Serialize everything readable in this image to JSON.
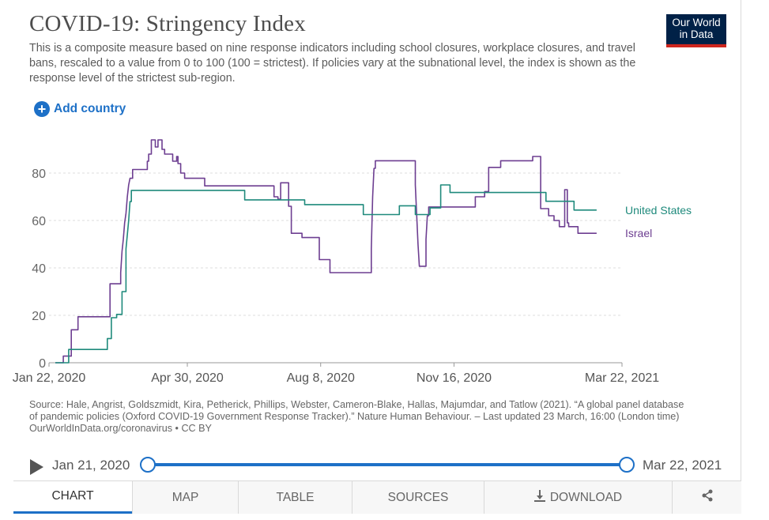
{
  "header": {
    "title": "COVID-19: Stringency Index",
    "subtitle": "This is a composite measure based on nine response indicators including school closures, workplace closures, and travel bans, rescaled to a value from 0 to 100 (100 = strictest). If policies vary at the subnational level, the index is shown as the response level of the strictest sub-region.",
    "logo_line1": "Our World",
    "logo_line2": "in Data",
    "logo_bg": "#002147",
    "logo_accent": "#ce261e"
  },
  "controls": {
    "add_country_label": "Add country",
    "add_icon": "plus-circle-icon",
    "accent": "#1d70c7"
  },
  "chart_data": {
    "type": "line",
    "x_tick_labels": [
      "Jan 22, 2020",
      "Apr 30, 2020",
      "Aug 8, 2020",
      "Nov 16, 2020",
      "Mar 22, 2021"
    ],
    "x_tick_days": [
      0,
      99,
      199,
      299,
      425
    ],
    "y_ticks": [
      0,
      20,
      40,
      60,
      80
    ],
    "ylim": [
      0,
      95
    ],
    "xlim_days": [
      0,
      425
    ],
    "grid": "horizontal dashed",
    "series": [
      {
        "name": "Israel",
        "color": "#6d3e91",
        "points": [
          [
            0,
            0
          ],
          [
            6,
            0
          ],
          [
            6,
            2.8
          ],
          [
            12,
            2.8
          ],
          [
            12,
            13.9
          ],
          [
            17,
            13.9
          ],
          [
            17,
            19.4
          ],
          [
            41,
            19.4
          ],
          [
            41,
            33.3
          ],
          [
            49,
            33.3
          ],
          [
            49,
            38
          ],
          [
            50,
            47
          ],
          [
            51,
            52
          ],
          [
            52,
            59
          ],
          [
            53,
            63
          ],
          [
            54,
            70
          ],
          [
            55,
            75
          ],
          [
            56,
            77.8
          ],
          [
            58,
            77.8
          ],
          [
            58,
            81.5
          ],
          [
            69,
            81.5
          ],
          [
            69,
            85
          ],
          [
            70,
            85
          ],
          [
            70,
            88
          ],
          [
            72,
            88
          ],
          [
            72,
            94
          ],
          [
            75,
            94
          ],
          [
            75,
            91
          ],
          [
            77,
            91
          ],
          [
            77,
            94
          ],
          [
            80,
            94
          ],
          [
            80,
            90
          ],
          [
            82,
            90
          ],
          [
            82,
            88
          ],
          [
            88,
            88
          ],
          [
            88,
            85
          ],
          [
            91,
            85
          ],
          [
            91,
            87
          ],
          [
            92,
            87
          ],
          [
            92,
            84
          ],
          [
            94,
            84
          ],
          [
            94,
            80
          ],
          [
            97,
            80
          ],
          [
            97,
            77.8
          ],
          [
            112,
            77.8
          ],
          [
            112,
            74.6
          ],
          [
            164,
            74.6
          ],
          [
            164,
            70
          ],
          [
            167,
            70
          ],
          [
            167,
            69
          ],
          [
            169,
            69
          ],
          [
            169,
            75.9
          ],
          [
            175,
            75.9
          ],
          [
            175,
            66
          ],
          [
            177,
            66
          ],
          [
            177,
            54.6
          ],
          [
            185,
            54.6
          ],
          [
            185,
            52.8
          ],
          [
            198,
            52.8
          ],
          [
            198,
            43.5
          ],
          [
            206,
            43.5
          ],
          [
            206,
            38
          ],
          [
            237,
            38
          ],
          [
            237,
            48
          ],
          [
            238,
            70
          ],
          [
            239,
            82
          ],
          [
            240,
            82
          ],
          [
            240,
            85.2
          ],
          [
            270,
            85.2
          ],
          [
            270,
            75
          ],
          [
            272,
            50
          ],
          [
            273,
            40.7
          ],
          [
            278,
            40.7
          ],
          [
            278,
            52
          ],
          [
            279,
            62
          ],
          [
            280,
            62
          ],
          [
            280,
            65.7
          ],
          [
            315,
            65.7
          ],
          [
            315,
            70
          ],
          [
            322,
            70
          ],
          [
            322,
            72.2
          ],
          [
            325,
            72.2
          ],
          [
            325,
            82.4
          ],
          [
            334,
            82.4
          ],
          [
            334,
            85.2
          ],
          [
            358,
            85.2
          ],
          [
            358,
            87
          ],
          [
            364,
            87
          ],
          [
            364,
            65
          ],
          [
            370,
            65
          ],
          [
            370,
            62
          ],
          [
            374,
            62
          ],
          [
            374,
            60
          ],
          [
            378,
            60
          ],
          [
            378,
            57.4
          ],
          [
            382,
            57.4
          ],
          [
            382,
            73
          ],
          [
            384,
            73
          ],
          [
            384,
            59
          ],
          [
            385,
            59
          ],
          [
            385,
            57.4
          ],
          [
            392,
            57.4
          ],
          [
            392,
            54.6
          ],
          [
            406,
            54.6
          ]
        ]
      },
      {
        "name": "United States",
        "color": "#1f8a7c",
        "points": [
          [
            0,
            0
          ],
          [
            10,
            0
          ],
          [
            10,
            5.6
          ],
          [
            39,
            5.6
          ],
          [
            39,
            10.2
          ],
          [
            42,
            10.2
          ],
          [
            42,
            19
          ],
          [
            46,
            19
          ],
          [
            46,
            20.4
          ],
          [
            50,
            20.4
          ],
          [
            50,
            30
          ],
          [
            53,
            30
          ],
          [
            53,
            48
          ],
          [
            55,
            60
          ],
          [
            56,
            68
          ],
          [
            57,
            68
          ],
          [
            57,
            72.7
          ],
          [
            142,
            72.7
          ],
          [
            142,
            68.7
          ],
          [
            187,
            68.7
          ],
          [
            187,
            66.7
          ],
          [
            231,
            66.7
          ],
          [
            231,
            62.5
          ],
          [
            258,
            62.5
          ],
          [
            258,
            66.2
          ],
          [
            270,
            66.2
          ],
          [
            270,
            62.5
          ],
          [
            281,
            62.5
          ],
          [
            281,
            65.3
          ],
          [
            289,
            65.3
          ],
          [
            289,
            75
          ],
          [
            296,
            75
          ],
          [
            296,
            71.8
          ],
          [
            368,
            71.8
          ],
          [
            368,
            68.1
          ],
          [
            389,
            68.1
          ],
          [
            389,
            64.4
          ],
          [
            406,
            64.4
          ]
        ]
      }
    ],
    "series_labels": [
      {
        "name": "United States",
        "value": 64.4
      },
      {
        "name": "Israel",
        "value": 54.6
      }
    ]
  },
  "source": {
    "text": "Source: Hale, Angrist, Goldszmidt, Kira, Petherick, Phillips, Webster, Cameron-Blake, Hallas, Majumdar, and Tatlow (2021). “A global panel database of pandemic policies (Oxford COVID-19 Government Response Tracker).” Nature Human Behaviour. – Last updated 23 March, 16:00 (London time)",
    "credit": "OurWorldInData.org/coronavirus • CC BY"
  },
  "timeline": {
    "play_icon": "play-icon",
    "start_label": "Jan 21, 2020",
    "end_label": "Mar 22, 2021",
    "start_fraction": 0,
    "end_fraction": 1
  },
  "tabs": [
    {
      "label": "CHART",
      "active": true
    },
    {
      "label": "MAP",
      "active": false
    },
    {
      "label": "TABLE",
      "active": false
    },
    {
      "label": "SOURCES",
      "active": false
    },
    {
      "label": "DOWNLOAD",
      "active": false,
      "icon": "download-icon"
    },
    {
      "label": "",
      "active": false,
      "icon": "share-icon"
    }
  ]
}
